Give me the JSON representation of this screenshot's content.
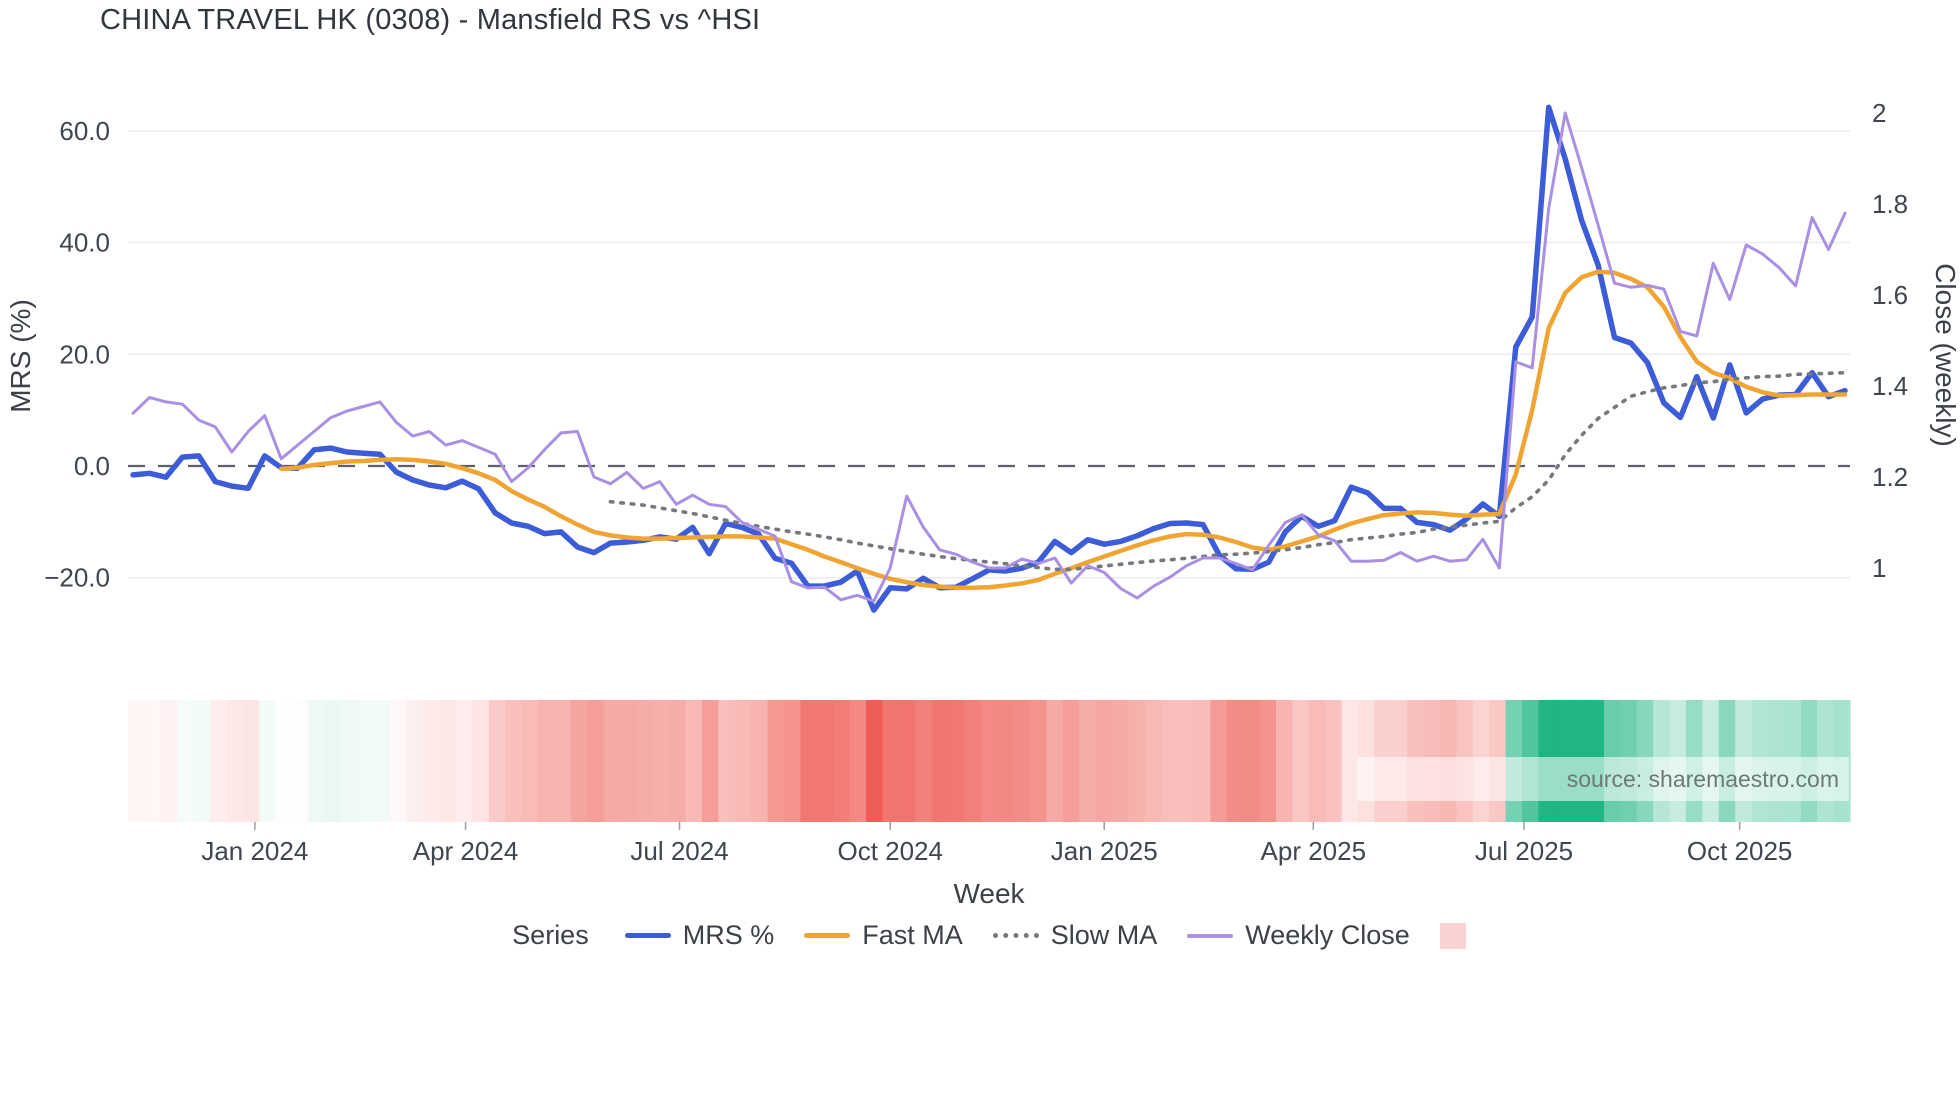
{
  "chart": {
    "title": "CHINA TRAVEL HK (0308) - Mansfield RS vs ^HSI",
    "source_note": "source: sharemaestro.com"
  },
  "legend": {
    "title": "Series",
    "extra_swatch_color": "#f9d3d3"
  },
  "chart_data": {
    "type": "line",
    "title": "CHINA TRAVEL HK (0308) - Mansfield RS vs ^HSI",
    "x_label": "Week",
    "grid": true,
    "legend_position": "bottom",
    "y_left": {
      "label": "MRS (%)",
      "tick_values": [
        60,
        40,
        20,
        0,
        -20
      ],
      "tick_labels": [
        "60.0",
        "40.0",
        "20.0",
        "0.0",
        "−20.0"
      ],
      "range": [
        -28,
        67
      ],
      "zero_line": "dashed"
    },
    "y_right": {
      "label": "Close (weekly)",
      "tick_values": [
        2,
        1.8,
        1.6,
        1.4,
        1.2,
        1
      ],
      "tick_labels": [
        "2",
        "1.8",
        "1.6",
        "1.4",
        "1.2",
        "1"
      ],
      "range": [
        0.92,
        2.01
      ]
    },
    "x_ticks": [
      {
        "label": "Jan 2024",
        "week": 7.4
      },
      {
        "label": "Apr 2024",
        "week": 20.2
      },
      {
        "label": "Jul 2024",
        "week": 33.2
      },
      {
        "label": "Oct 2024",
        "week": 46.0
      },
      {
        "label": "Jan 2025",
        "week": 59.0
      },
      {
        "label": "Apr 2025",
        "week": 71.7
      },
      {
        "label": "Jul 2025",
        "week": 84.5
      },
      {
        "label": "Oct 2025",
        "week": 97.6
      }
    ],
    "weeks_total": 105,
    "series": [
      {
        "name": "MRS %",
        "axis": "left",
        "color": "#3d5cd8",
        "style": "solid",
        "width": 5.5,
        "values": [
          -1.6,
          -1.3,
          -2.0,
          1.6,
          1.8,
          -2.8,
          -3.6,
          -4.0,
          1.8,
          -0.3,
          -0.4,
          2.9,
          3.2,
          2.5,
          2.3,
          2.1,
          -1.1,
          -2.5,
          -3.4,
          -3.9,
          -2.7,
          -4.1,
          -8.4,
          -10.2,
          -10.8,
          -12.1,
          -11.8,
          -14.5,
          -15.5,
          -13.8,
          -13.6,
          -13.3,
          -12.7,
          -13.1,
          -11.0,
          -15.7,
          -10.3,
          -11.0,
          -12.2,
          -16.5,
          -17.4,
          -21.5,
          -21.5,
          -20.8,
          -18.8,
          -25.8,
          -21.8,
          -22.0,
          -20.1,
          -21.8,
          -21.7,
          -20.2,
          -18.6,
          -18.8,
          -18.3,
          -17.2,
          -13.5,
          -15.5,
          -13.2,
          -14.0,
          -13.5,
          -12.5,
          -11.2,
          -10.3,
          -10.2,
          -10.5,
          -16.0,
          -18.4,
          -18.5,
          -17.2,
          -11.8,
          -9.0,
          -10.8,
          -9.8,
          -3.8,
          -4.8,
          -7.6,
          -7.6,
          -10.1,
          -10.5,
          -11.5,
          -9.5,
          -6.8,
          -9.0,
          21.3,
          26.7,
          64.2,
          55.0,
          44.0,
          36.0,
          23.0,
          22.0,
          18.5,
          11.3,
          8.7,
          16.0,
          8.6,
          18.1,
          9.5,
          12.0,
          12.7,
          12.8,
          16.7,
          12.4,
          13.5
        ]
      },
      {
        "name": "Fast MA",
        "axis": "left",
        "color": "#f0a432",
        "style": "solid",
        "width": 4.5,
        "values": [
          null,
          null,
          null,
          null,
          null,
          null,
          null,
          null,
          null,
          -0.5,
          -0.3,
          0.2,
          0.5,
          0.8,
          0.9,
          1.1,
          1.2,
          1.1,
          0.8,
          0.4,
          -0.4,
          -1.3,
          -2.5,
          -4.5,
          -6.0,
          -7.3,
          -9.0,
          -10.5,
          -11.8,
          -12.4,
          -12.8,
          -13.0,
          -13.0,
          -12.9,
          -12.8,
          -12.7,
          -12.6,
          -12.6,
          -12.8,
          -13.0,
          -14.0,
          -15.0,
          -16.2,
          -17.2,
          -18.3,
          -19.3,
          -20.2,
          -20.8,
          -21.3,
          -21.6,
          -21.8,
          -21.8,
          -21.7,
          -21.4,
          -21.0,
          -20.4,
          -19.3,
          -18.3,
          -17.2,
          -16.2,
          -15.2,
          -14.2,
          -13.3,
          -12.6,
          -12.2,
          -12.3,
          -12.8,
          -13.6,
          -14.6,
          -15.0,
          -14.4,
          -13.5,
          -12.6,
          -11.4,
          -10.3,
          -9.5,
          -8.8,
          -8.5,
          -8.3,
          -8.4,
          -8.7,
          -8.9,
          -8.7,
          -8.6,
          -1.5,
          10.0,
          24.7,
          31.0,
          33.8,
          34.8,
          34.6,
          33.5,
          32.0,
          28.5,
          23.1,
          18.7,
          16.7,
          15.7,
          14.2,
          13.2,
          12.6,
          12.7,
          12.8,
          12.8,
          12.8
        ]
      },
      {
        "name": "Slow MA",
        "axis": "left",
        "color": "#75797f",
        "style": "dotted",
        "width": 3.6,
        "values": [
          null,
          null,
          null,
          null,
          null,
          null,
          null,
          null,
          null,
          null,
          null,
          null,
          null,
          null,
          null,
          null,
          null,
          null,
          null,
          null,
          null,
          null,
          null,
          null,
          null,
          null,
          null,
          null,
          null,
          -6.4,
          -6.7,
          -7.0,
          -7.5,
          -8.0,
          -8.5,
          -9.1,
          -9.7,
          -10.3,
          -10.8,
          -11.3,
          -11.8,
          -12.2,
          -12.7,
          -13.2,
          -13.8,
          -14.3,
          -14.8,
          -15.3,
          -15.8,
          -16.2,
          -16.6,
          -16.9,
          -17.2,
          -17.5,
          -17.9,
          -18.2,
          -18.5,
          -18.5,
          -18.2,
          -17.9,
          -17.6,
          -17.3,
          -17.0,
          -16.8,
          -16.5,
          -16.2,
          -15.9,
          -15.8,
          -15.6,
          -15.3,
          -15.0,
          -14.6,
          -14.1,
          -13.7,
          -13.2,
          -12.9,
          -12.6,
          -12.2,
          -11.9,
          -11.3,
          -10.9,
          -10.6,
          -10.2,
          -9.9,
          -7.5,
          -5.5,
          -2.5,
          2.0,
          5.5,
          8.5,
          10.5,
          12.5,
          13.3,
          14.0,
          14.4,
          14.9,
          15.1,
          15.5,
          15.8,
          16.0,
          16.1,
          16.4,
          16.5,
          16.6,
          16.7
        ]
      },
      {
        "name": "Weekly Close",
        "axis": "right",
        "color": "#ab8fe3",
        "style": "solid",
        "width": 3,
        "values": [
          1.34,
          1.375,
          1.365,
          1.36,
          1.325,
          1.31,
          1.255,
          1.3,
          1.335,
          1.24,
          1.27,
          1.3,
          1.33,
          1.345,
          1.355,
          1.365,
          1.32,
          1.29,
          1.3,
          1.27,
          1.28,
          1.265,
          1.25,
          1.19,
          1.22,
          1.26,
          1.297,
          1.3,
          1.2,
          1.185,
          1.21,
          1.175,
          1.19,
          1.14,
          1.16,
          1.14,
          1.135,
          1.1,
          1.085,
          1.07,
          0.97,
          0.956,
          0.958,
          0.93,
          0.94,
          0.927,
          1.0,
          1.158,
          1.09,
          1.04,
          1.03,
          1.013,
          1.0,
          1.0,
          1.02,
          1.01,
          1.022,
          0.967,
          1.005,
          0.99,
          0.955,
          0.934,
          0.96,
          0.98,
          1.005,
          1.022,
          1.022,
          1.01,
          0.996,
          1.05,
          1.1,
          1.117,
          1.073,
          1.06,
          1.015,
          1.015,
          1.017,
          1.034,
          1.015,
          1.026,
          1.015,
          1.018,
          1.063,
          1.0,
          1.453,
          1.44,
          1.79,
          2.0,
          1.88,
          1.754,
          1.626,
          1.617,
          1.621,
          1.613,
          1.52,
          1.51,
          1.67,
          1.59,
          1.71,
          1.69,
          1.66,
          1.62,
          1.77,
          1.7,
          1.78
        ]
      }
    ],
    "heat_strip": {
      "source_series": "MRS %",
      "negative_color": "#ee5c54",
      "positive_color": "#21b585",
      "neutral_color": "#ffffff",
      "negative_saturation_at": 26,
      "positive_saturation_at": 34
    }
  }
}
